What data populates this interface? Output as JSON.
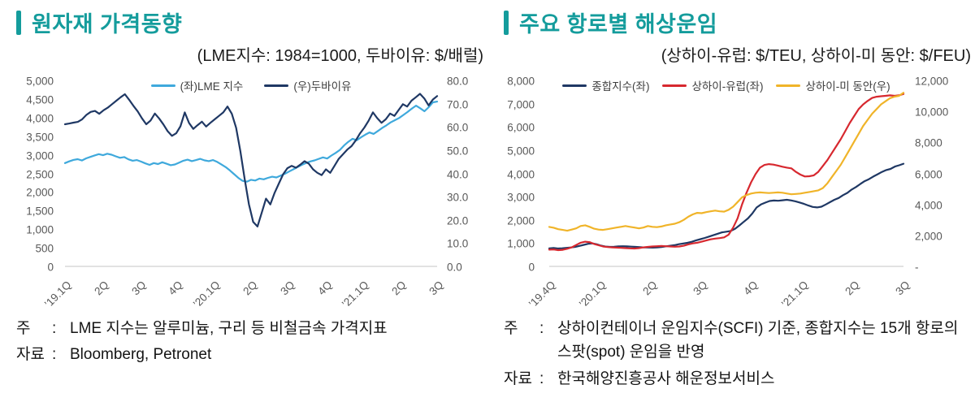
{
  "accent_color": "#149c9c",
  "baseline_color": "#d9d9d9",
  "panels": [
    {
      "title": "원자재 가격동향",
      "subtitle": "(LME지수: 1984=1000, 두바이유: $/배럴)",
      "notes": [
        {
          "label": "주",
          "separator": ":",
          "text": "LME 지수는 알루미늄, 구리 등 비철금속 가격지표"
        },
        {
          "label": "자료",
          "separator": ":",
          "text": "Bloomberg, Petronet"
        }
      ]
    },
    {
      "title": "주요 항로별 해상운임",
      "subtitle": "(상하이-유럽: $/TEU, 상하이-미 동안: $/FEU)",
      "notes": [
        {
          "label": "주",
          "separator": ":",
          "text": "상하이컨테이너 운임지수(SCFI) 기준, 종합지수는 15개 항로의 스팟(spot) 운임을 반영"
        },
        {
          "label": "자료",
          "separator": ":",
          "text": "한국해양진흥공사 해운정보서비스"
        }
      ]
    }
  ],
  "chart_data": [
    {
      "type": "line",
      "title": "원자재 가격동향",
      "legend_position": "top-center",
      "grid": "baseline-only",
      "x_ticks": [
        "’19.1Q",
        "2Q",
        "3Q",
        "4Q",
        "’20.1Q",
        "2Q",
        "3Q",
        "4Q",
        "’21.1Q",
        "2Q",
        "3Q"
      ],
      "left_axis": {
        "min": 0,
        "max": 5000,
        "ticks": [
          "5,000",
          "4,500",
          "4,000",
          "3,500",
          "3,000",
          "2,500",
          "2,000",
          "1,500",
          "1,000",
          "500",
          "0"
        ]
      },
      "right_axis": {
        "min": 0,
        "max": 80,
        "ticks": [
          "80.0",
          "70.0",
          "60.0",
          "50.0",
          "40.0",
          "30.0",
          "20.0",
          "10.0",
          "0.0"
        ]
      },
      "series": [
        {
          "name": "(좌)LME 지수",
          "axis": "left",
          "color": "#3fa9dc",
          "values": [
            2800,
            2845,
            2885,
            2905,
            2870,
            2925,
            2965,
            3005,
            3040,
            3010,
            3050,
            3025,
            2980,
            2940,
            2960,
            2900,
            2862,
            2880,
            2838,
            2790,
            2752,
            2800,
            2772,
            2820,
            2782,
            2742,
            2762,
            2812,
            2862,
            2890,
            2852,
            2880,
            2912,
            2872,
            2852,
            2880,
            2830,
            2760,
            2690,
            2600,
            2500,
            2400,
            2320,
            2300,
            2350,
            2330,
            2382,
            2362,
            2402,
            2432,
            2412,
            2462,
            2512,
            2572,
            2632,
            2692,
            2752,
            2802,
            2842,
            2872,
            2912,
            2952,
            2922,
            3002,
            3072,
            3152,
            3272,
            3372,
            3452,
            3412,
            3492,
            3562,
            3622,
            3582,
            3662,
            3742,
            3812,
            3892,
            3952,
            4012,
            4092,
            4172,
            4262,
            4342,
            4272,
            4192,
            4302,
            4432,
            4452
          ]
        },
        {
          "name": "(우)두바이유",
          "axis": "right",
          "color": "#1f3864",
          "values": [
            61.5,
            61.8,
            62.2,
            62.5,
            63.6,
            65.5,
            66.8,
            67.2,
            66.0,
            67.5,
            68.6,
            70.1,
            71.6,
            73.1,
            74.4,
            72.0,
            69.4,
            67.0,
            64.0,
            61.5,
            63.1,
            66.1,
            64.0,
            61.4,
            58.5,
            56.5,
            57.6,
            60.6,
            66.6,
            62.0,
            59.5,
            61.1,
            62.6,
            60.5,
            62.1,
            63.6,
            65.1,
            66.6,
            69.1,
            66.0,
            60.0,
            50.0,
            38.0,
            27.0,
            19.5,
            17.5,
            23.5,
            29.5,
            27.0,
            32.0,
            36.0,
            40.0,
            42.6,
            43.6,
            42.8,
            44.1,
            45.6,
            44.5,
            42.1,
            40.6,
            39.6,
            42.1,
            40.6,
            43.6,
            46.6,
            48.6,
            50.6,
            52.1,
            54.6,
            57.6,
            60.1,
            63.1,
            66.6,
            64.1,
            62.1,
            63.6,
            66.1,
            65.1,
            67.6,
            70.1,
            69.1,
            71.6,
            73.1,
            74.6,
            72.6,
            69.6,
            72.1,
            73.6
          ]
        }
      ]
    },
    {
      "type": "line",
      "title": "주요 항로별 해상운임",
      "legend_position": "top-center",
      "grid": "baseline-only",
      "x_ticks": [
        "’19.4Q",
        "’20.1Q",
        "2Q",
        "3Q",
        "4Q",
        "’21.1Q",
        "2Q",
        "3Q"
      ],
      "left_axis": {
        "min": 0,
        "max": 8000,
        "ticks": [
          "8,000",
          "7,000",
          "6,000",
          "5,000",
          "4,000",
          "3,000",
          "2,000",
          "1,000",
          "0"
        ]
      },
      "right_axis": {
        "min": 0,
        "max": 12000,
        "ticks": [
          "12,000",
          "10,000",
          "8,000",
          "6,000",
          "4,000",
          "2,000",
          "-"
        ]
      },
      "series": [
        {
          "name": "종합지수(좌)",
          "axis": "left",
          "color": "#1f3864",
          "values": [
            810,
            825,
            805,
            815,
            832,
            850,
            875,
            915,
            960,
            1005,
            1022,
            985,
            925,
            888,
            875,
            882,
            895,
            900,
            893,
            884,
            872,
            858,
            850,
            846,
            842,
            852,
            868,
            898,
            922,
            948,
            988,
            1018,
            1048,
            1095,
            1155,
            1205,
            1258,
            1318,
            1378,
            1438,
            1498,
            1528,
            1558,
            1648,
            1795,
            1948,
            2098,
            2308,
            2568,
            2698,
            2778,
            2848,
            2868,
            2858,
            2878,
            2898,
            2872,
            2832,
            2782,
            2722,
            2652,
            2592,
            2572,
            2602,
            2698,
            2798,
            2898,
            2978,
            3098,
            3198,
            3338,
            3448,
            3578,
            3698,
            3788,
            3898,
            3998,
            4098,
            4178,
            4228,
            4328,
            4385,
            4450
          ]
        },
        {
          "name": "상하이-유럽(좌)",
          "axis": "left",
          "color": "#d7282f",
          "values": [
            755,
            762,
            735,
            748,
            792,
            852,
            952,
            1052,
            1098,
            1075,
            1000,
            942,
            892,
            868,
            852,
            842,
            832,
            822,
            812,
            802,
            822,
            852,
            872,
            892,
            902,
            912,
            900,
            892,
            882,
            892,
            922,
            982,
            1022,
            1052,
            1098,
            1148,
            1198,
            1228,
            1252,
            1282,
            1402,
            1702,
            2102,
            2702,
            3202,
            3652,
            4002,
            4282,
            4398,
            4432,
            4412,
            4372,
            4322,
            4282,
            4252,
            4102,
            3982,
            3902,
            3912,
            3952,
            4102,
            4352,
            4602,
            4902,
            5202,
            5502,
            5852,
            6202,
            6502,
            6802,
            7002,
            7152,
            7282,
            7332,
            7352,
            7372,
            7392,
            7372,
            7392,
            7452
          ]
        },
        {
          "name": "상하이-미 동안(우)",
          "axis": "right",
          "color": "#f0b429",
          "values": [
            2600,
            2545,
            2455,
            2405,
            2355,
            2425,
            2505,
            2655,
            2705,
            2605,
            2485,
            2425,
            2405,
            2455,
            2505,
            2555,
            2605,
            2655,
            2605,
            2555,
            2505,
            2555,
            2655,
            2605,
            2585,
            2625,
            2705,
            2755,
            2805,
            2905,
            3055,
            3255,
            3405,
            3505,
            3485,
            3555,
            3605,
            3655,
            3605,
            3585,
            3705,
            3905,
            4205,
            4505,
            4655,
            4755,
            4805,
            4825,
            4805,
            4785,
            4805,
            4825,
            4805,
            4755,
            4705,
            4725,
            4755,
            4805,
            4855,
            4905,
            4955,
            5105,
            5405,
            5805,
            6205,
            6605,
            7105,
            7605,
            8105,
            8605,
            9105,
            9505,
            9905,
            10205,
            10505,
            10705,
            10905,
            11005,
            11055,
            11255
          ]
        }
      ]
    }
  ]
}
